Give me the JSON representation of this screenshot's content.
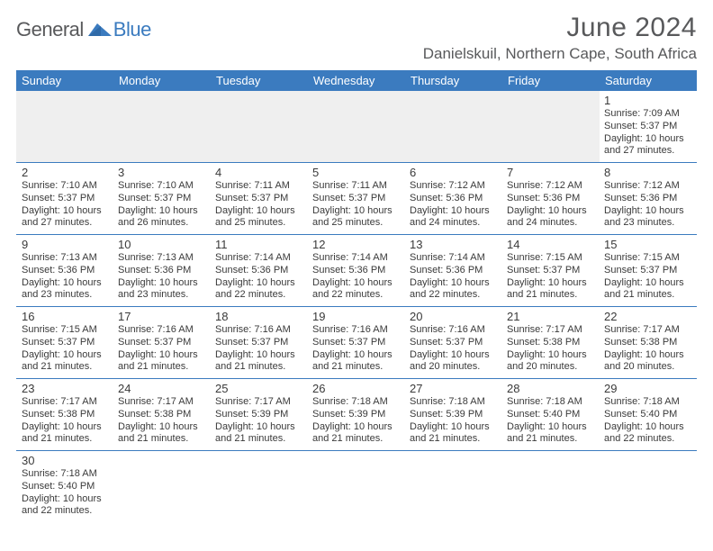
{
  "logo": {
    "text1": "General",
    "text2": "Blue"
  },
  "title": "June 2024",
  "location": "Danielskuil, Northern Cape, South Africa",
  "headerColor": "#3b7bbf",
  "weekdays": [
    "Sunday",
    "Monday",
    "Tuesday",
    "Wednesday",
    "Thursday",
    "Friday",
    "Saturday"
  ],
  "weeks": [
    [
      null,
      null,
      null,
      null,
      null,
      null,
      {
        "n": "1",
        "sr": "7:09 AM",
        "ss": "5:37 PM",
        "dl": "10 hours and 27 minutes."
      }
    ],
    [
      {
        "n": "2",
        "sr": "7:10 AM",
        "ss": "5:37 PM",
        "dl": "10 hours and 27 minutes."
      },
      {
        "n": "3",
        "sr": "7:10 AM",
        "ss": "5:37 PM",
        "dl": "10 hours and 26 minutes."
      },
      {
        "n": "4",
        "sr": "7:11 AM",
        "ss": "5:37 PM",
        "dl": "10 hours and 25 minutes."
      },
      {
        "n": "5",
        "sr": "7:11 AM",
        "ss": "5:37 PM",
        "dl": "10 hours and 25 minutes."
      },
      {
        "n": "6",
        "sr": "7:12 AM",
        "ss": "5:36 PM",
        "dl": "10 hours and 24 minutes."
      },
      {
        "n": "7",
        "sr": "7:12 AM",
        "ss": "5:36 PM",
        "dl": "10 hours and 24 minutes."
      },
      {
        "n": "8",
        "sr": "7:12 AM",
        "ss": "5:36 PM",
        "dl": "10 hours and 23 minutes."
      }
    ],
    [
      {
        "n": "9",
        "sr": "7:13 AM",
        "ss": "5:36 PM",
        "dl": "10 hours and 23 minutes."
      },
      {
        "n": "10",
        "sr": "7:13 AM",
        "ss": "5:36 PM",
        "dl": "10 hours and 23 minutes."
      },
      {
        "n": "11",
        "sr": "7:14 AM",
        "ss": "5:36 PM",
        "dl": "10 hours and 22 minutes."
      },
      {
        "n": "12",
        "sr": "7:14 AM",
        "ss": "5:36 PM",
        "dl": "10 hours and 22 minutes."
      },
      {
        "n": "13",
        "sr": "7:14 AM",
        "ss": "5:36 PM",
        "dl": "10 hours and 22 minutes."
      },
      {
        "n": "14",
        "sr": "7:15 AM",
        "ss": "5:37 PM",
        "dl": "10 hours and 21 minutes."
      },
      {
        "n": "15",
        "sr": "7:15 AM",
        "ss": "5:37 PM",
        "dl": "10 hours and 21 minutes."
      }
    ],
    [
      {
        "n": "16",
        "sr": "7:15 AM",
        "ss": "5:37 PM",
        "dl": "10 hours and 21 minutes."
      },
      {
        "n": "17",
        "sr": "7:16 AM",
        "ss": "5:37 PM",
        "dl": "10 hours and 21 minutes."
      },
      {
        "n": "18",
        "sr": "7:16 AM",
        "ss": "5:37 PM",
        "dl": "10 hours and 21 minutes."
      },
      {
        "n": "19",
        "sr": "7:16 AM",
        "ss": "5:37 PM",
        "dl": "10 hours and 21 minutes."
      },
      {
        "n": "20",
        "sr": "7:16 AM",
        "ss": "5:37 PM",
        "dl": "10 hours and 20 minutes."
      },
      {
        "n": "21",
        "sr": "7:17 AM",
        "ss": "5:38 PM",
        "dl": "10 hours and 20 minutes."
      },
      {
        "n": "22",
        "sr": "7:17 AM",
        "ss": "5:38 PM",
        "dl": "10 hours and 20 minutes."
      }
    ],
    [
      {
        "n": "23",
        "sr": "7:17 AM",
        "ss": "5:38 PM",
        "dl": "10 hours and 21 minutes."
      },
      {
        "n": "24",
        "sr": "7:17 AM",
        "ss": "5:38 PM",
        "dl": "10 hours and 21 minutes."
      },
      {
        "n": "25",
        "sr": "7:17 AM",
        "ss": "5:39 PM",
        "dl": "10 hours and 21 minutes."
      },
      {
        "n": "26",
        "sr": "7:18 AM",
        "ss": "5:39 PM",
        "dl": "10 hours and 21 minutes."
      },
      {
        "n": "27",
        "sr": "7:18 AM",
        "ss": "5:39 PM",
        "dl": "10 hours and 21 minutes."
      },
      {
        "n": "28",
        "sr": "7:18 AM",
        "ss": "5:40 PM",
        "dl": "10 hours and 21 minutes."
      },
      {
        "n": "29",
        "sr": "7:18 AM",
        "ss": "5:40 PM",
        "dl": "10 hours and 22 minutes."
      }
    ],
    [
      {
        "n": "30",
        "sr": "7:18 AM",
        "ss": "5:40 PM",
        "dl": "10 hours and 22 minutes."
      },
      null,
      null,
      null,
      null,
      null,
      null
    ]
  ],
  "labels": {
    "sunrise": "Sunrise: ",
    "sunset": "Sunset: ",
    "daylight": "Daylight: "
  }
}
